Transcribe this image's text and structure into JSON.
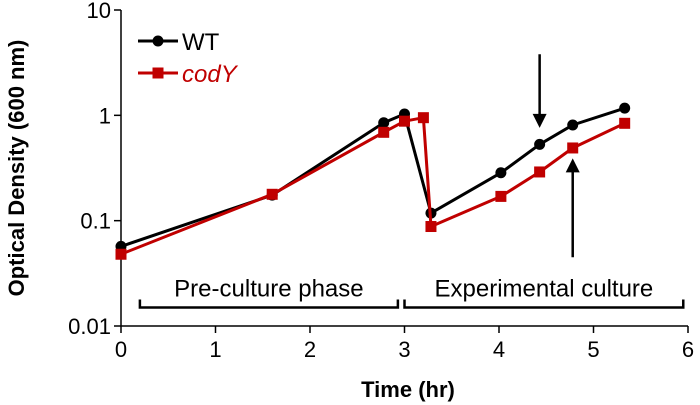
{
  "chart_data": {
    "type": "line",
    "title": "",
    "xlabel": "Time (hr)",
    "ylabel": "Optical Density (600 nm)",
    "xlim": [
      0,
      6
    ],
    "ylim": [
      0.01,
      10
    ],
    "yscale": "log",
    "grid": false,
    "x_ticks": [
      0,
      1,
      2,
      3,
      4,
      5,
      6
    ],
    "x_tick_labels": [
      "0",
      "1",
      "2",
      "3",
      "4",
      "5",
      "6"
    ],
    "y_ticks": [
      0.01,
      0.1,
      1,
      10
    ],
    "y_tick_labels": [
      "0.01",
      "0.1",
      "1",
      "10"
    ],
    "legend_position": "top-left",
    "series": [
      {
        "name": "WT",
        "italic": false,
        "color": "#000000",
        "marker": "circle",
        "points": [
          {
            "x": 0.0,
            "y": 0.057
          },
          {
            "x": 1.6,
            "y": 0.175
          },
          {
            "x": 2.78,
            "y": 0.85
          },
          {
            "x": 3.0,
            "y": 1.03
          },
          {
            "x": 3.28,
            "y": 0.118
          },
          {
            "x": 4.02,
            "y": 0.285
          },
          {
            "x": 4.43,
            "y": 0.53
          },
          {
            "x": 4.78,
            "y": 0.81
          },
          {
            "x": 5.33,
            "y": 1.17
          }
        ]
      },
      {
        "name": "codY",
        "italic": true,
        "color": "#c00000",
        "marker": "square",
        "points": [
          {
            "x": 0.0,
            "y": 0.048
          },
          {
            "x": 1.6,
            "y": 0.178
          },
          {
            "x": 2.78,
            "y": 0.69
          },
          {
            "x": 3.0,
            "y": 0.88
          },
          {
            "x": 3.2,
            "y": 0.95
          },
          {
            "x": 3.28,
            "y": 0.088
          },
          {
            "x": 4.02,
            "y": 0.17
          },
          {
            "x": 4.43,
            "y": 0.29
          },
          {
            "x": 4.78,
            "y": 0.49
          },
          {
            "x": 5.33,
            "y": 0.84
          }
        ]
      }
    ],
    "annotations": [
      {
        "type": "bracket",
        "label": "Pre-culture phase",
        "x_start": 0.2,
        "x_end": 2.93,
        "y": 0.015
      },
      {
        "type": "bracket",
        "label": "Experimental culture",
        "x_start": 3.0,
        "x_end": 5.95,
        "y": 0.015
      },
      {
        "type": "arrow",
        "direction": "down",
        "x": 4.43,
        "y_from": 3.8,
        "y_to": 0.76
      },
      {
        "type": "arrow",
        "direction": "up",
        "x": 4.78,
        "y_from": 0.045,
        "y_to": 0.39
      }
    ]
  }
}
